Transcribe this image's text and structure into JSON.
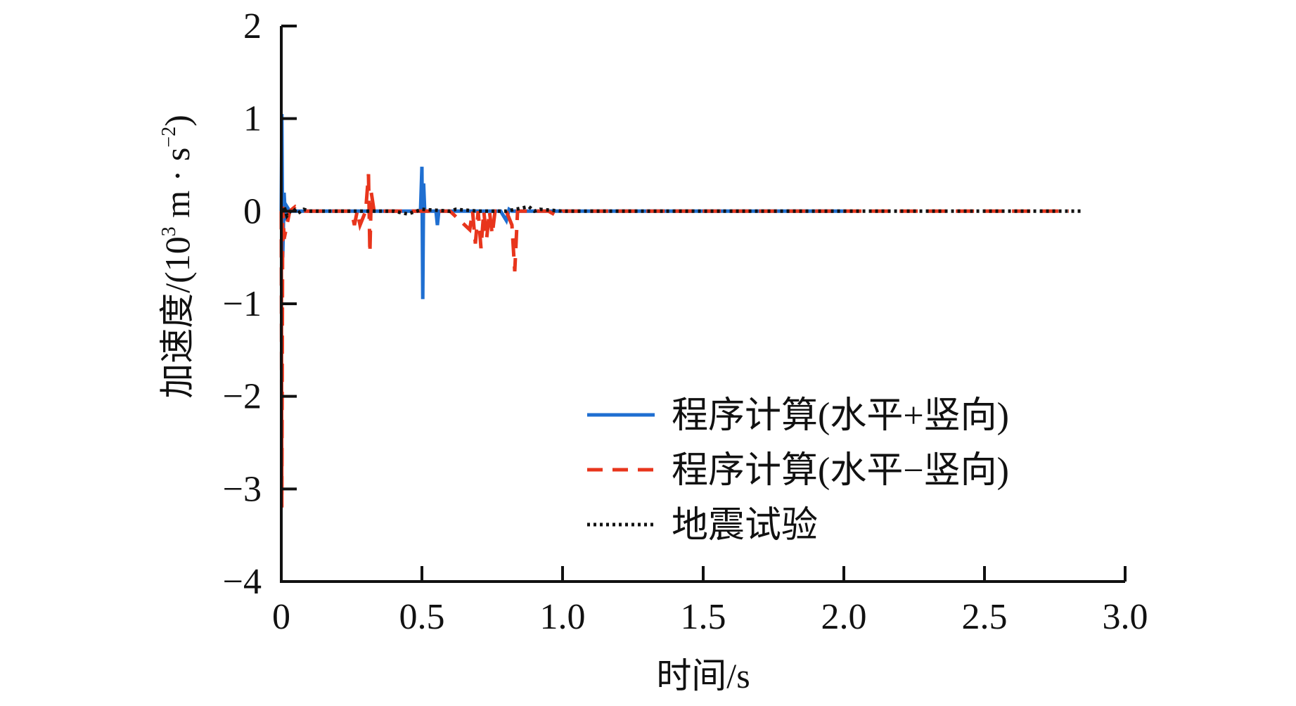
{
  "chart_data": {
    "type": "line",
    "xlabel": "时间/s",
    "ylabel": "加速度/(10³ m · s⁻²)",
    "ylabel_parts": {
      "prefix": "加速度/(10",
      "exp1": "3",
      "mid": " m · s",
      "exp2": "−2",
      "suffix": ")"
    },
    "xlim": [
      0,
      3.0
    ],
    "ylim": [
      -4,
      2
    ],
    "xticks": [
      {
        "value": 0,
        "label": "0"
      },
      {
        "value": 0.5,
        "label": "0.5"
      },
      {
        "value": 1.0,
        "label": "1.0"
      },
      {
        "value": 1.5,
        "label": "1.5"
      },
      {
        "value": 2.0,
        "label": "2.0"
      },
      {
        "value": 2.5,
        "label": "2.5"
      },
      {
        "value": 3.0,
        "label": "3.0"
      }
    ],
    "yticks": [
      {
        "value": 2,
        "label": "2"
      },
      {
        "value": 1,
        "label": "1"
      },
      {
        "value": 0,
        "label": "0"
      },
      {
        "value": -1,
        "label": "−1"
      },
      {
        "value": -2,
        "label": "−2"
      },
      {
        "value": -3,
        "label": "−3"
      },
      {
        "value": -4,
        "label": "−4"
      }
    ],
    "grid": false,
    "legend_position": "bottom-right",
    "series": [
      {
        "name": "程序计算(水平+竖向)",
        "color": "#1f6fd1",
        "style": "solid",
        "x": [
          0,
          0.002,
          0.005,
          0.01,
          0.015,
          0.02,
          0.03,
          0.05,
          0.08,
          0.1,
          0.2,
          0.3,
          0.4,
          0.495,
          0.5,
          0.503,
          0.506,
          0.51,
          0.53,
          0.55,
          0.555,
          0.56,
          0.6,
          0.7,
          0.78,
          0.8,
          0.81,
          0.82,
          0.9,
          1.0,
          1.5,
          1.9,
          2.0
        ],
        "y": [
          0,
          1.05,
          -0.5,
          0.2,
          -0.1,
          0.05,
          0,
          0,
          0,
          0,
          0,
          0,
          0,
          0,
          0.48,
          -0.95,
          0.3,
          0,
          0,
          0,
          -0.15,
          0,
          0,
          0,
          0,
          -0.1,
          0.02,
          0,
          0,
          0,
          0,
          0,
          0
        ]
      },
      {
        "name": "程序计算(水平−竖向)",
        "color": "#e8351c",
        "style": "dash",
        "x": [
          0,
          0.002,
          0.005,
          0.01,
          0.02,
          0.03,
          0.05,
          0.08,
          0.1,
          0.25,
          0.26,
          0.27,
          0.28,
          0.3,
          0.31,
          0.315,
          0.32,
          0.33,
          0.35,
          0.4,
          0.6,
          0.67,
          0.68,
          0.69,
          0.7,
          0.71,
          0.72,
          0.73,
          0.74,
          0.75,
          0.76,
          0.8,
          0.82,
          0.83,
          0.84,
          0.85,
          0.9,
          0.95,
          0.98,
          1.0,
          1.5,
          2.0,
          2.5,
          2.8
        ],
        "y": [
          0,
          -3.2,
          0.05,
          -0.3,
          -0.15,
          0,
          0.05,
          0,
          0,
          0,
          -0.15,
          0,
          -0.15,
          0,
          0.4,
          -0.45,
          0.2,
          0,
          0,
          0,
          0,
          -0.2,
          0,
          -0.35,
          0,
          -0.4,
          0,
          -0.3,
          0,
          -0.25,
          0,
          0,
          -0.15,
          -0.65,
          0,
          0,
          0,
          0,
          -0.05,
          0,
          0,
          0,
          0,
          0
        ]
      },
      {
        "name": "地震试验",
        "color": "#111111",
        "style": "dot",
        "x": [
          0,
          0.01,
          0.02,
          0.04,
          0.06,
          0.08,
          0.1,
          0.15,
          0.2,
          0.3,
          0.4,
          0.45,
          0.5,
          0.55,
          0.6,
          0.62,
          0.7,
          0.8,
          0.88,
          0.9,
          0.92,
          1.0,
          1.5,
          2.0,
          2.5,
          2.85
        ],
        "y": [
          0,
          0.05,
          -0.05,
          0.03,
          -0.02,
          0.02,
          0,
          0,
          0,
          0,
          0,
          -0.03,
          0.02,
          0.01,
          0,
          0.02,
          0,
          0,
          0.05,
          0,
          0.02,
          0,
          0,
          0,
          0,
          0
        ]
      }
    ]
  }
}
